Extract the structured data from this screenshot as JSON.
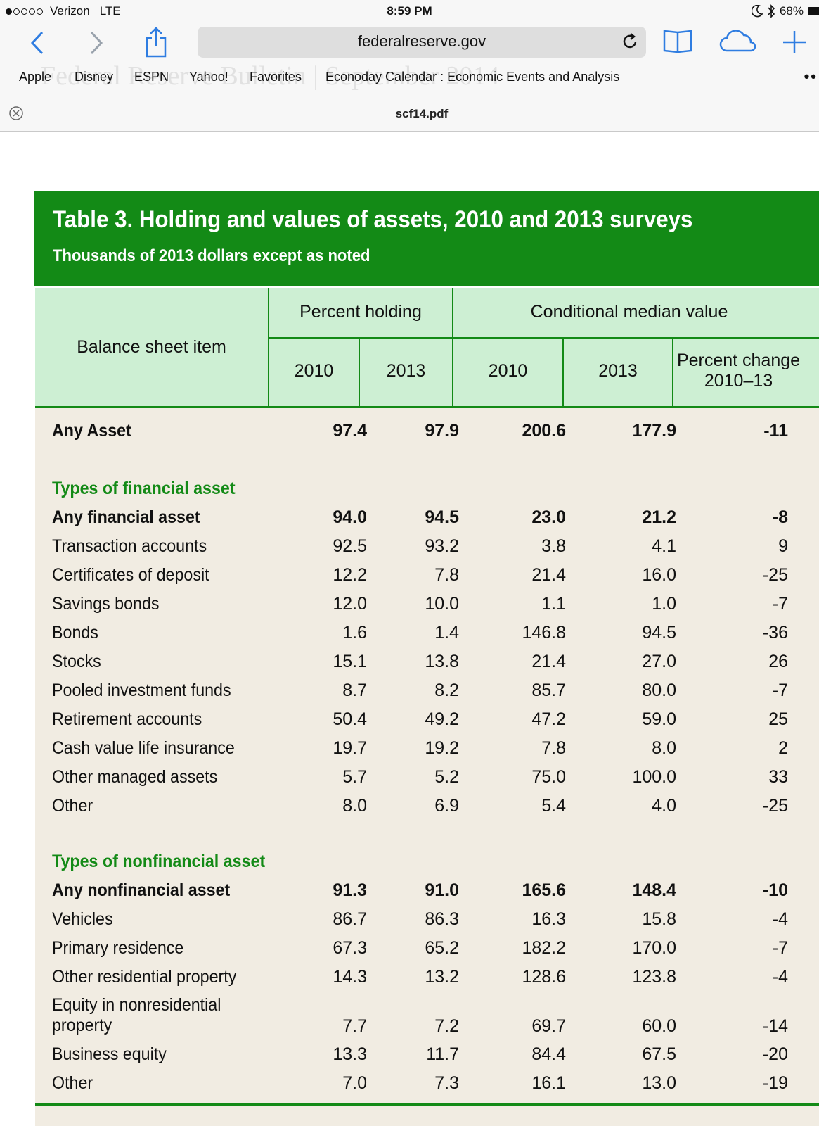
{
  "status_bar": {
    "carrier": "Verizon",
    "network": "LTE",
    "time": "8:59 PM",
    "battery": "68%"
  },
  "browser": {
    "url": "federalreserve.gov",
    "watermark": "Federal Reserve Bulletin | September 2014",
    "bookmarks": [
      "Apple",
      "Disney",
      "ESPN",
      "Yahoo!",
      "Favorites",
      "Econoday Calendar : Economic Events and Analysis"
    ],
    "tab_title": "scf14.pdf"
  },
  "table": {
    "title": "Table 3. Holding and values of assets, 2010 and 2013 surveys",
    "subtitle": "Thousands of 2013 dollars except as noted",
    "headers": {
      "item": "Balance sheet item",
      "group1": "Percent holding",
      "group2": "Conditional median value",
      "y2010a": "2010",
      "y2013a": "2013",
      "y2010b": "2010",
      "y2013b": "2013",
      "pct_change_line1": "Percent change",
      "pct_change_line2": "2010–13"
    },
    "any_asset": {
      "label": "Any Asset",
      "v": [
        "97.4",
        "97.9",
        "200.6",
        "177.9",
        "-11"
      ]
    },
    "financial": {
      "heading": "Types of financial asset",
      "rows": [
        {
          "label": "Any financial asset",
          "v": [
            "94.0",
            "94.5",
            "23.0",
            "21.2",
            "-8"
          ]
        },
        {
          "label": "Transaction accounts",
          "v": [
            "92.5",
            "93.2",
            "3.8",
            "4.1",
            "9"
          ]
        },
        {
          "label": "Certificates of deposit",
          "v": [
            "12.2",
            "7.8",
            "21.4",
            "16.0",
            "-25"
          ]
        },
        {
          "label": "Savings bonds",
          "v": [
            "12.0",
            "10.0",
            "1.1",
            "1.0",
            "-7"
          ]
        },
        {
          "label": "Bonds",
          "v": [
            "1.6",
            "1.4",
            "146.8",
            "94.5",
            "-36"
          ]
        },
        {
          "label": "Stocks",
          "v": [
            "15.1",
            "13.8",
            "21.4",
            "27.0",
            "26"
          ]
        },
        {
          "label": "Pooled investment funds",
          "v": [
            "8.7",
            "8.2",
            "85.7",
            "80.0",
            "-7"
          ]
        },
        {
          "label": "Retirement accounts",
          "v": [
            "50.4",
            "49.2",
            "47.2",
            "59.0",
            "25"
          ]
        },
        {
          "label": "Cash value life insurance",
          "v": [
            "19.7",
            "19.2",
            "7.8",
            "8.0",
            "2"
          ]
        },
        {
          "label": "Other managed assets",
          "v": [
            "5.7",
            "5.2",
            "75.0",
            "100.0",
            "33"
          ]
        },
        {
          "label": "Other",
          "v": [
            "8.0",
            "6.9",
            "5.4",
            "4.0",
            "-25"
          ]
        }
      ]
    },
    "nonfinancial": {
      "heading": "Types of nonfinancial asset",
      "rows": [
        {
          "label": "Any nonfinancial asset",
          "v": [
            "91.3",
            "91.0",
            "165.6",
            "148.4",
            "-10"
          ]
        },
        {
          "label": "Vehicles",
          "v": [
            "86.7",
            "86.3",
            "16.3",
            "15.8",
            "-4"
          ]
        },
        {
          "label": "Primary residence",
          "v": [
            "67.3",
            "65.2",
            "182.2",
            "170.0",
            "-7"
          ]
        },
        {
          "label": "Other residential property",
          "v": [
            "14.3",
            "13.2",
            "128.6",
            "123.8",
            "-4"
          ]
        },
        {
          "label_line1": "Equity in nonresidential",
          "label_line2": "property",
          "v": [
            "7.7",
            "7.2",
            "69.7",
            "60.0",
            "-14"
          ]
        },
        {
          "label": "Business equity",
          "v": [
            "13.3",
            "11.7",
            "84.4",
            "67.5",
            "-20"
          ]
        },
        {
          "label": "Other",
          "v": [
            "7.0",
            "7.3",
            "16.1",
            "13.0",
            "-19"
          ]
        }
      ]
    }
  }
}
